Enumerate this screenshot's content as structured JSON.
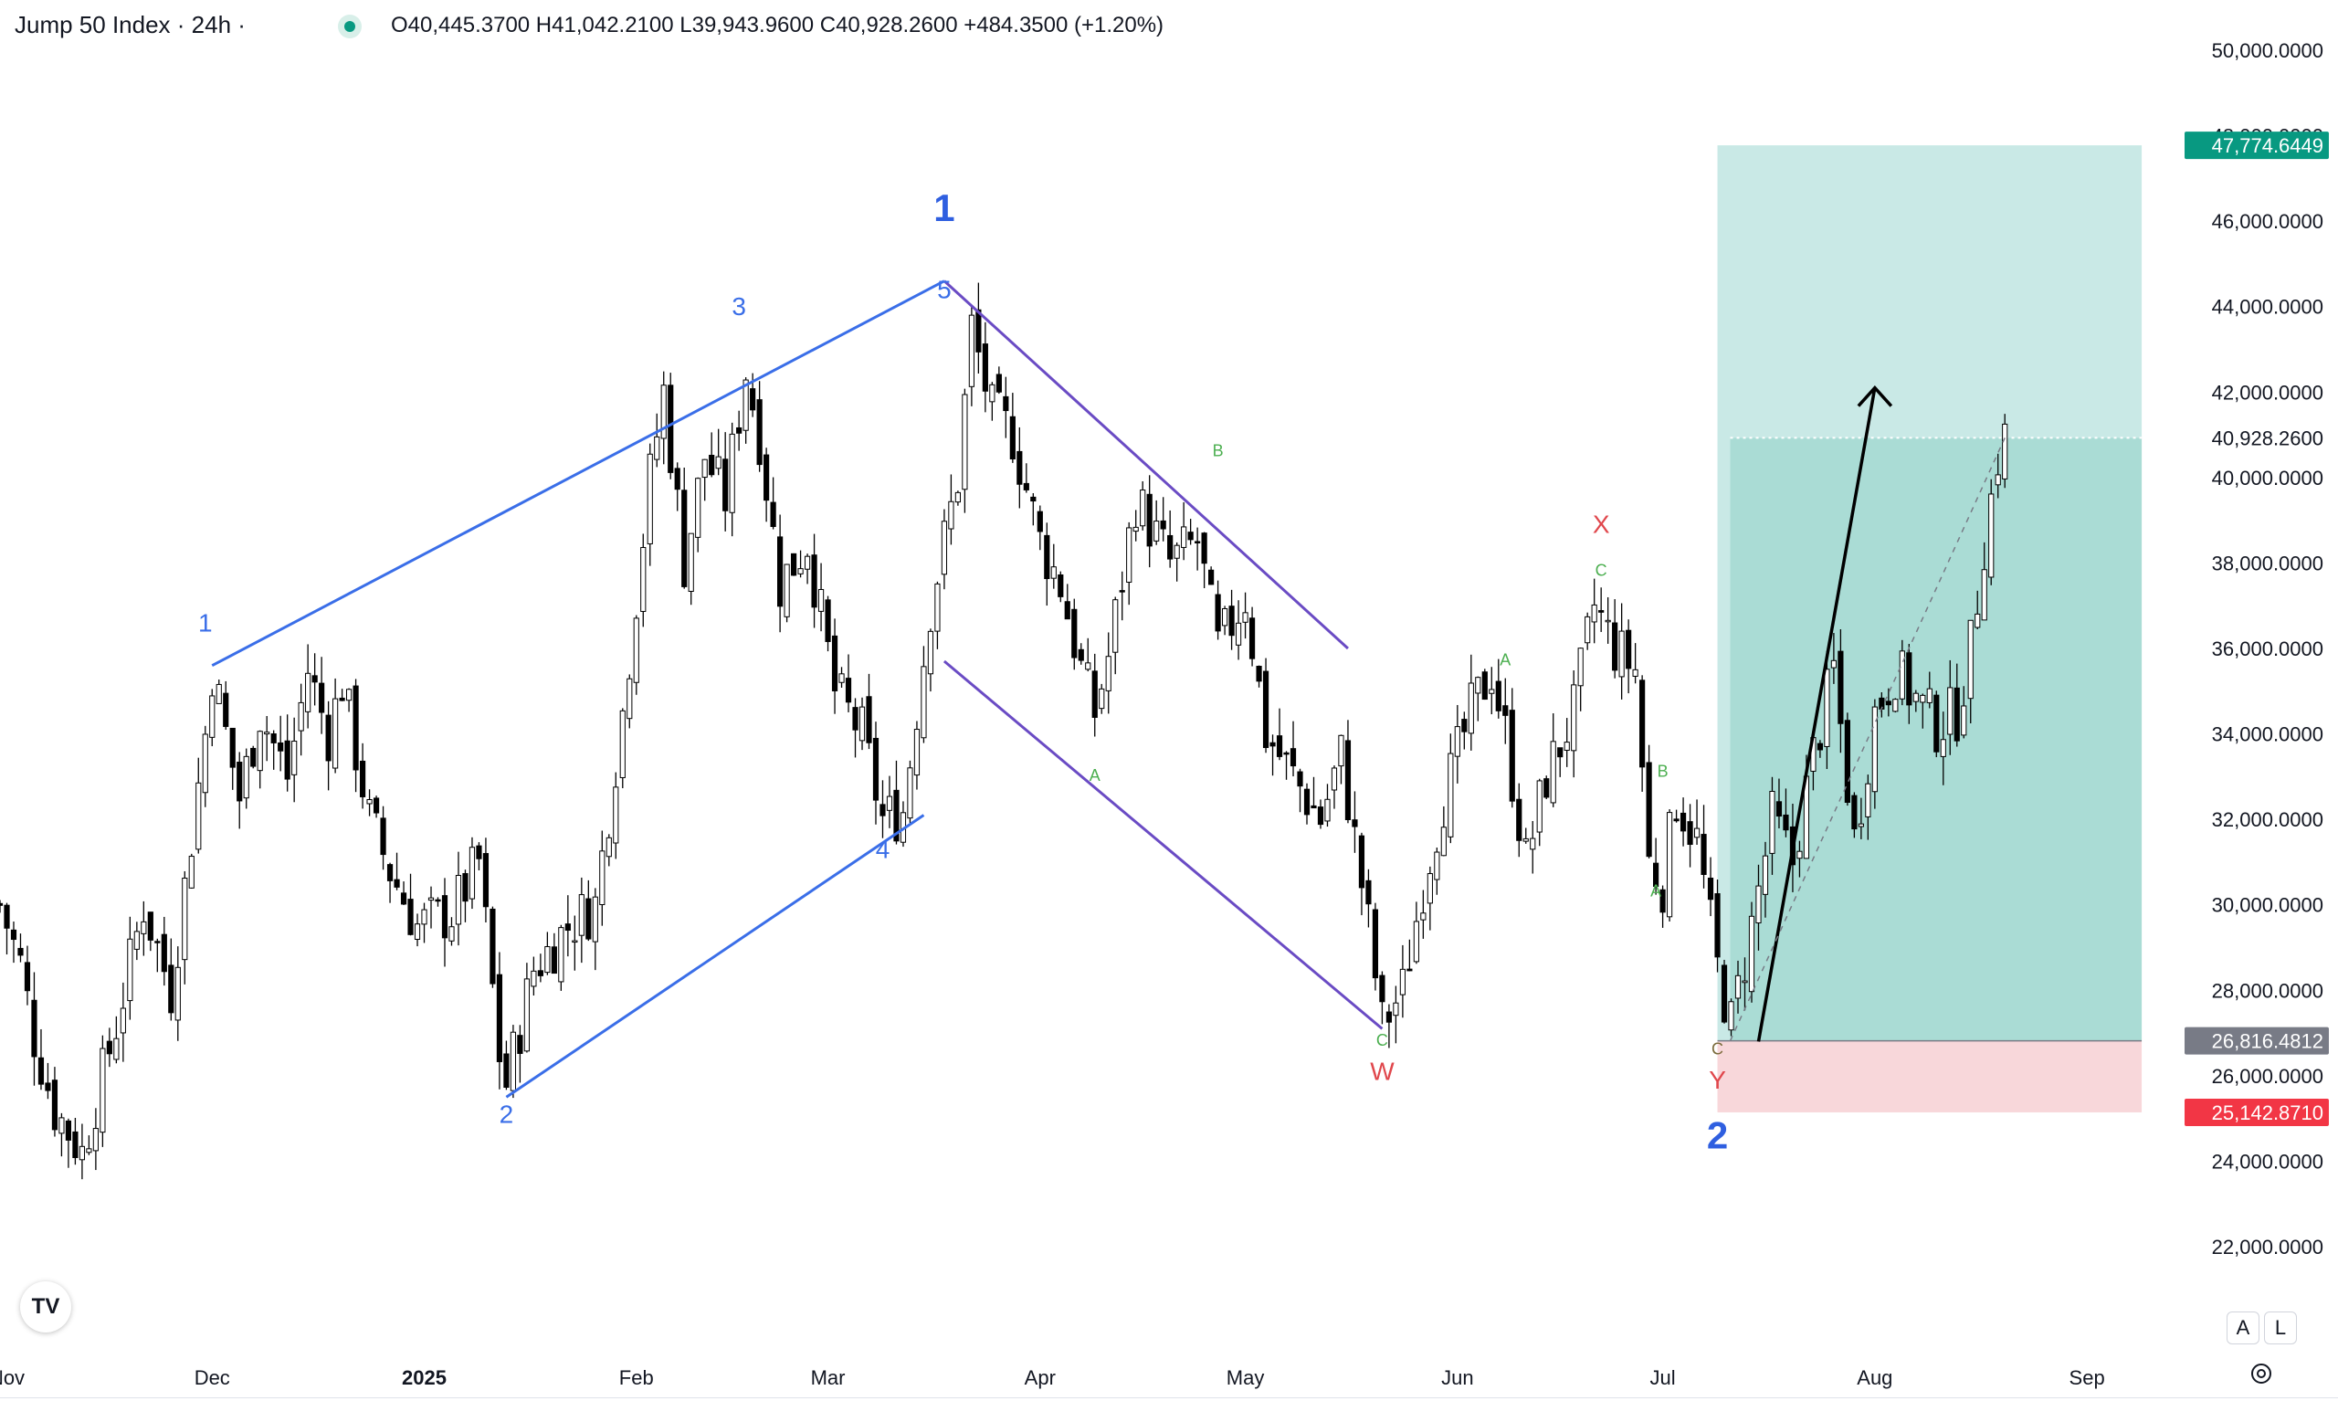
{
  "header": {
    "title": "Jump 50 Index · 24h ·",
    "ohlc": "O40,445.3700  H41,042.2100  L39,943.9600  C40,928.2600  +484.3500 (+1.20%)"
  },
  "chart_data": {
    "type": "candlestick",
    "symbol": "Jump 50 Index",
    "interval": "24h",
    "ylim": [
      20800,
      51500
    ],
    "price_ticks": [
      50000,
      48000,
      46000,
      44000,
      42000,
      40000,
      38000,
      36000,
      34000,
      32000,
      30000,
      28000,
      26000,
      24000,
      22000
    ],
    "price_tick_labels": [
      "50,000.0000",
      "48,000.0000",
      "46,000.0000",
      "44,000.0000",
      "42,000.0000",
      "40,000.0000",
      "38,000.0000",
      "36,000.0000",
      "34,000.0000",
      "32,000.0000",
      "30,000.0000",
      "28,000.0000",
      "26,000.0000",
      "24,000.0000",
      "22,000.0000"
    ],
    "time_labels": [
      {
        "text": "Nov",
        "date": "2024-11-01",
        "bold": false
      },
      {
        "text": "Dec",
        "date": "2024-12-01",
        "bold": false
      },
      {
        "text": "2025",
        "date": "2025-01-01",
        "bold": true
      },
      {
        "text": "Feb",
        "date": "2025-02-01",
        "bold": false
      },
      {
        "text": "Mar",
        "date": "2025-03-01",
        "bold": false
      },
      {
        "text": "Apr",
        "date": "2025-04-01",
        "bold": false
      },
      {
        "text": "May",
        "date": "2025-05-01",
        "bold": false
      },
      {
        "text": "Jun",
        "date": "2025-06-01",
        "bold": false
      },
      {
        "text": "Jul",
        "date": "2025-07-01",
        "bold": false
      },
      {
        "text": "Aug",
        "date": "2025-08-01",
        "bold": false
      },
      {
        "text": "Sep",
        "date": "2025-09-01",
        "bold": false
      }
    ],
    "date_range": [
      "2024-10-31",
      "2025-09-15"
    ],
    "price_path": [
      [
        "2024-10-31",
        30000
      ],
      [
        "2024-11-03",
        28600
      ],
      [
        "2024-11-05",
        26900
      ],
      [
        "2024-11-08",
        25200
      ],
      [
        "2024-11-12",
        24200
      ],
      [
        "2024-11-17",
        27200
      ],
      [
        "2024-11-21",
        30000
      ],
      [
        "2024-11-25",
        28000
      ],
      [
        "2024-11-30",
        34000
      ],
      [
        "2024-12-01",
        35500
      ],
      [
        "2024-12-05",
        32500
      ],
      [
        "2024-12-08",
        34500
      ],
      [
        "2024-12-12",
        33000
      ],
      [
        "2024-12-15",
        35500
      ],
      [
        "2024-12-18",
        34000
      ],
      [
        "2024-12-20",
        35200
      ],
      [
        "2024-12-24",
        32000
      ],
      [
        "2024-12-27",
        30800
      ],
      [
        "2024-12-31",
        29500
      ],
      [
        "2025-01-05",
        29800
      ],
      [
        "2025-01-09",
        31000
      ],
      [
        "2025-01-12",
        26500
      ],
      [
        "2025-01-13",
        25800
      ],
      [
        "2025-01-17",
        28500
      ],
      [
        "2025-01-22",
        29500
      ],
      [
        "2025-01-26",
        30000
      ],
      [
        "2025-01-30",
        34500
      ],
      [
        "2025-02-03",
        40000
      ],
      [
        "2025-02-05",
        42000
      ],
      [
        "2025-02-08",
        38000
      ],
      [
        "2025-02-11",
        40500
      ],
      [
        "2025-02-14",
        39500
      ],
      [
        "2025-02-17",
        42500
      ],
      [
        "2025-02-19",
        41000
      ],
      [
        "2025-02-22",
        37500
      ],
      [
        "2025-02-26",
        38500
      ],
      [
        "2025-03-02",
        35000
      ],
      [
        "2025-03-06",
        34000
      ],
      [
        "2025-03-09",
        32000
      ],
      [
        "2025-03-12",
        32200
      ],
      [
        "2025-03-16",
        37000
      ],
      [
        "2025-03-18",
        38500
      ],
      [
        "2025-03-20",
        40000
      ],
      [
        "2025-03-22",
        43500
      ],
      [
        "2025-03-25",
        41500
      ],
      [
        "2025-03-28",
        41000
      ],
      [
        "2025-04-01",
        38500
      ],
      [
        "2025-04-04",
        37500
      ],
      [
        "2025-04-07",
        35500
      ],
      [
        "2025-04-09",
        34500
      ],
      [
        "2025-04-11",
        35800
      ],
      [
        "2025-04-15",
        39500
      ],
      [
        "2025-04-20",
        38000
      ],
      [
        "2025-04-24",
        38500
      ],
      [
        "2025-04-27",
        36000
      ],
      [
        "2025-05-01",
        37200
      ],
      [
        "2025-05-04",
        34000
      ],
      [
        "2025-05-08",
        33000
      ],
      [
        "2025-05-12",
        32000
      ],
      [
        "2025-05-15",
        33500
      ],
      [
        "2025-05-17",
        31500
      ],
      [
        "2025-05-19",
        29500
      ],
      [
        "2025-05-21",
        27200
      ],
      [
        "2025-05-24",
        28000
      ],
      [
        "2025-05-27",
        30500
      ],
      [
        "2025-05-30",
        32500
      ],
      [
        "2025-06-03",
        34500
      ],
      [
        "2025-06-06",
        35500
      ],
      [
        "2025-06-08",
        34000
      ],
      [
        "2025-06-11",
        31000
      ],
      [
        "2025-06-14",
        33000
      ],
      [
        "2025-06-18",
        34500
      ],
      [
        "2025-06-21",
        37000
      ],
      [
        "2025-06-24",
        36000
      ],
      [
        "2025-06-27",
        35500
      ],
      [
        "2025-06-29",
        31000
      ],
      [
        "2025-07-01",
        30500
      ],
      [
        "2025-07-03",
        32500
      ],
      [
        "2025-07-06",
        31500
      ],
      [
        "2025-07-09",
        28500
      ],
      [
        "2025-07-11",
        27200
      ],
      [
        "2025-07-14",
        29500
      ],
      [
        "2025-07-17",
        32000
      ],
      [
        "2025-07-20",
        31000
      ],
      [
        "2025-07-23",
        33500
      ],
      [
        "2025-07-26",
        35500
      ],
      [
        "2025-07-29",
        31500
      ],
      [
        "2025-08-01",
        34500
      ],
      [
        "2025-08-04",
        35500
      ],
      [
        "2025-08-07",
        34800
      ],
      [
        "2025-08-10",
        34200
      ],
      [
        "2025-08-13",
        34500
      ],
      [
        "2025-08-15",
        36000
      ],
      [
        "2025-08-17",
        38500
      ],
      [
        "2025-08-19",
        40500
      ],
      [
        "2025-08-20",
        40928
      ]
    ],
    "last_price": 40928.26,
    "position": {
      "start_date": "2025-07-09",
      "end_date": "2025-09-09",
      "entry": 26816.4812,
      "target": 47774.6449,
      "stop": 25142.871,
      "entry_label": "26,816.4812",
      "target_label": "47,774.6449",
      "stop_label": "25,142.8710",
      "last_label": "40,928.2600"
    },
    "trendlines": [
      {
        "name": "impulse-upper-line",
        "color": "#3a6ee8",
        "from": [
          "2024-12-01",
          35600
        ],
        "to": [
          "2025-03-18",
          44600
        ]
      },
      {
        "name": "impulse-lower-line",
        "color": "#3a6ee8",
        "from": [
          "2025-01-13",
          25500
        ],
        "to": [
          "2025-03-15",
          32100
        ]
      },
      {
        "name": "correction-upper-line",
        "color": "#6a4bc4",
        "from": [
          "2025-03-18",
          44600
        ],
        "to": [
          "2025-05-16",
          36000
        ]
      },
      {
        "name": "correction-lower-line",
        "color": "#6a4bc4",
        "from": [
          "2025-03-18",
          35700
        ],
        "to": [
          "2025-05-21",
          27100
        ]
      }
    ],
    "annotations": [
      {
        "name": "wave-label-big-1",
        "text": "1",
        "date": "2025-03-18",
        "price": 46000,
        "color": "#2f5fe0",
        "size": 42,
        "bold": true
      },
      {
        "name": "wave-label-big-2",
        "text": "2",
        "date": "2025-07-09",
        "price": 24300,
        "color": "#2f5fe0",
        "size": 42,
        "bold": true
      },
      {
        "name": "wave-label-1",
        "text": "1",
        "date": "2024-11-30",
        "price": 36400,
        "color": "#3a6ee8",
        "size": 28,
        "bold": false
      },
      {
        "name": "wave-label-2",
        "text": "2",
        "date": "2025-01-13",
        "price": 24900,
        "color": "#3a6ee8",
        "size": 28,
        "bold": false
      },
      {
        "name": "wave-label-3",
        "text": "3",
        "date": "2025-02-16",
        "price": 43800,
        "color": "#3a6ee8",
        "size": 28,
        "bold": false
      },
      {
        "name": "wave-label-4",
        "text": "4",
        "date": "2025-03-09",
        "price": 31100,
        "color": "#3a6ee8",
        "size": 28,
        "bold": false
      },
      {
        "name": "wave-label-5",
        "text": "5",
        "date": "2025-03-18",
        "price": 44200,
        "color": "#3a6ee8",
        "size": 28,
        "bold": false
      },
      {
        "name": "wave-label-w",
        "text": "W",
        "date": "2025-05-21",
        "price": 25900,
        "color": "#e0474c",
        "size": 28,
        "bold": false
      },
      {
        "name": "wave-label-x",
        "text": "X",
        "date": "2025-06-22",
        "price": 38700,
        "color": "#e0474c",
        "size": 28,
        "bold": false
      },
      {
        "name": "wave-label-y",
        "text": "Y",
        "date": "2025-07-09",
        "price": 25700,
        "color": "#e0474c",
        "size": 28,
        "bold": false
      },
      {
        "name": "sub-label-a1",
        "text": "A",
        "date": "2025-04-09",
        "price": 32900,
        "color": "#4caf50",
        "size": 18,
        "bold": false
      },
      {
        "name": "sub-label-b1",
        "text": "B",
        "date": "2025-04-27",
        "price": 40500,
        "color": "#4caf50",
        "size": 18,
        "bold": false
      },
      {
        "name": "sub-label-c1",
        "text": "C",
        "date": "2025-05-21",
        "price": 26700,
        "color": "#4caf50",
        "size": 18,
        "bold": false
      },
      {
        "name": "sub-label-a2",
        "text": "A",
        "date": "2025-06-08",
        "price": 35600,
        "color": "#4caf50",
        "size": 18,
        "bold": false
      },
      {
        "name": "sub-label-c2",
        "text": "C",
        "date": "2025-06-22",
        "price": 37700,
        "color": "#4caf50",
        "size": 18,
        "bold": false
      },
      {
        "name": "sub-label-b2",
        "text": "B",
        "date": "2025-07-01",
        "price": 33000,
        "color": "#4caf50",
        "size": 18,
        "bold": false
      },
      {
        "name": "sub-label-a3",
        "text": "A",
        "date": "2025-06-30",
        "price": 30200,
        "color": "#4caf50",
        "size": 18,
        "bold": false
      },
      {
        "name": "sub-label-c3",
        "text": "C",
        "date": "2025-07-09",
        "price": 26500,
        "color": "#7a6a3a",
        "size": 18,
        "bold": false
      }
    ],
    "projection_arrow": {
      "from": [
        "2025-07-15",
        26800
      ],
      "to": [
        "2025-08-01",
        42100
      ]
    }
  },
  "ui": {
    "logo_text": "TV",
    "btn_auto": "A",
    "btn_log": "L"
  },
  "colors": {
    "up_candle": "#ffffff",
    "down_candle": "#000000",
    "profit_zone": "#b2dfdb",
    "profit_zone_strong": "#a5d9d1",
    "loss_zone": "#f8d7da",
    "target_badge": "#089981",
    "stop_badge": "#f23645",
    "entry_badge": "#787b86",
    "last_badge_text": "#131722"
  }
}
